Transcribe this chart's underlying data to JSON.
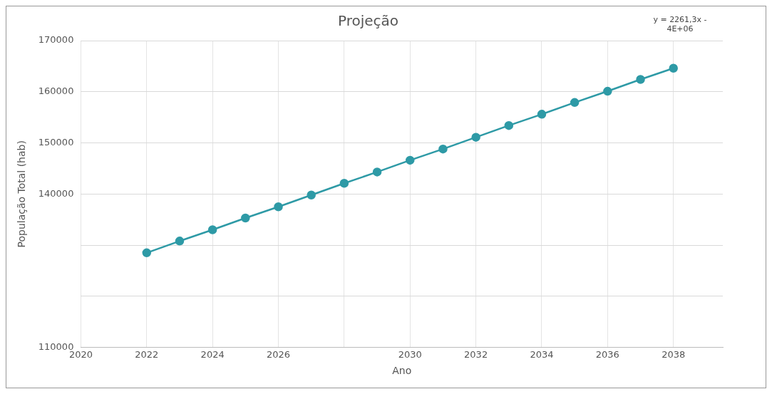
{
  "chart_data": {
    "type": "line",
    "title": "Projeção",
    "xlabel": "Ano",
    "ylabel": "População Total (hab)",
    "annotations": [
      "y = 2261,3x - 4E+06"
    ],
    "x": [
      2022,
      2023,
      2024,
      2025,
      2026,
      2027,
      2028,
      2029,
      2030,
      2031,
      2032,
      2033,
      2034,
      2035,
      2036,
      2037,
      2038
    ],
    "series": [
      {
        "color": "#2e9aa6",
        "values": [
          128500,
          130800,
          133000,
          135300,
          137500,
          139800,
          142100,
          144300,
          146600,
          148800,
          151100,
          153400,
          155600,
          157900,
          160100,
          162400,
          164600
        ]
      }
    ],
    "xlim": [
      2020,
      2039.5
    ],
    "xticks": [
      2020,
      2022,
      2024,
      2026,
      {
        "value": 2028,
        "label": null
      },
      2030,
      2032,
      2034,
      2036,
      2038
    ],
    "ylim": [
      110000,
      170000
    ],
    "yticks": [
      110000,
      {
        "value": 120000,
        "label": null
      },
      {
        "value": 130000,
        "label": null
      },
      140000,
      150000,
      160000,
      170000
    ],
    "grid": true,
    "marker": "circle",
    "line_style": "solid"
  }
}
